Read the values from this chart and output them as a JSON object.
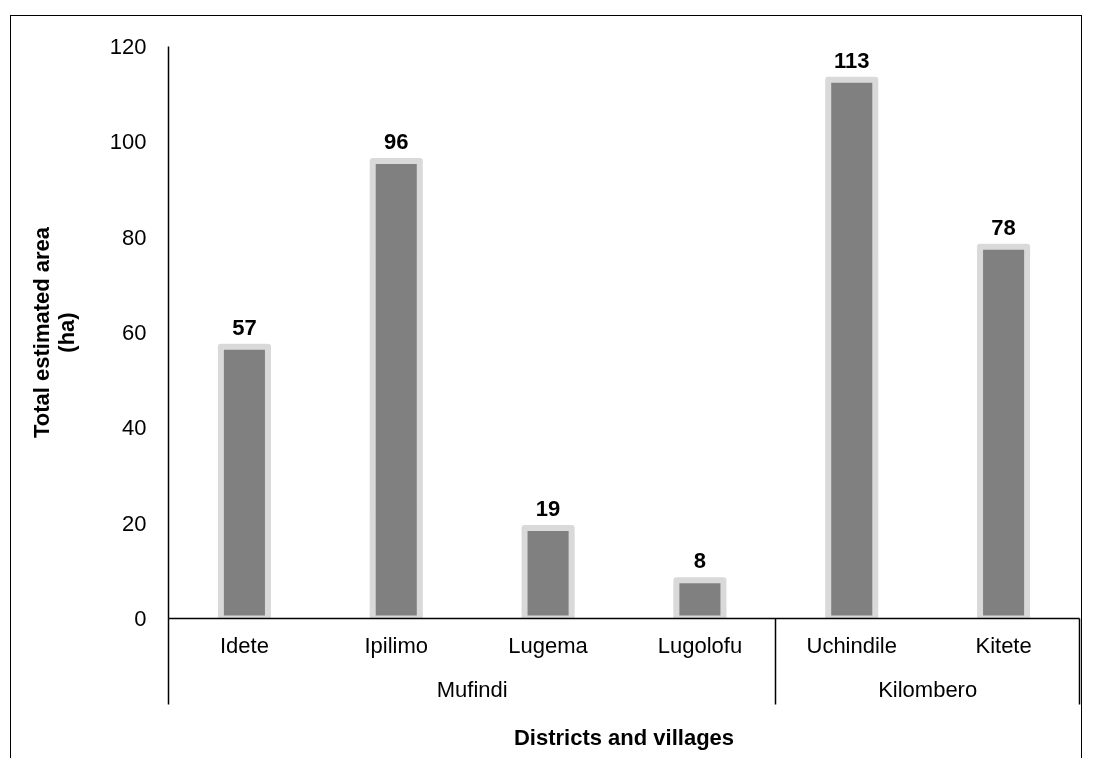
{
  "chart_data": {
    "type": "bar",
    "xlabel": "Districts and villages",
    "ylabel": "Total estimated area\n(ha)",
    "categories": [
      "Idete",
      "Ipilimo",
      "Lugema",
      "Lugolofu",
      "Uchindile",
      "Kitete"
    ],
    "values": [
      57,
      96,
      19,
      8,
      113,
      78
    ],
    "color": "#808080",
    "ylim": [
      0,
      120
    ],
    "yticks": [
      0,
      20,
      40,
      60,
      80,
      100,
      120
    ],
    "data_labels": true,
    "annotations": [
      "Mufindi",
      "Kilombero"
    ]
  }
}
